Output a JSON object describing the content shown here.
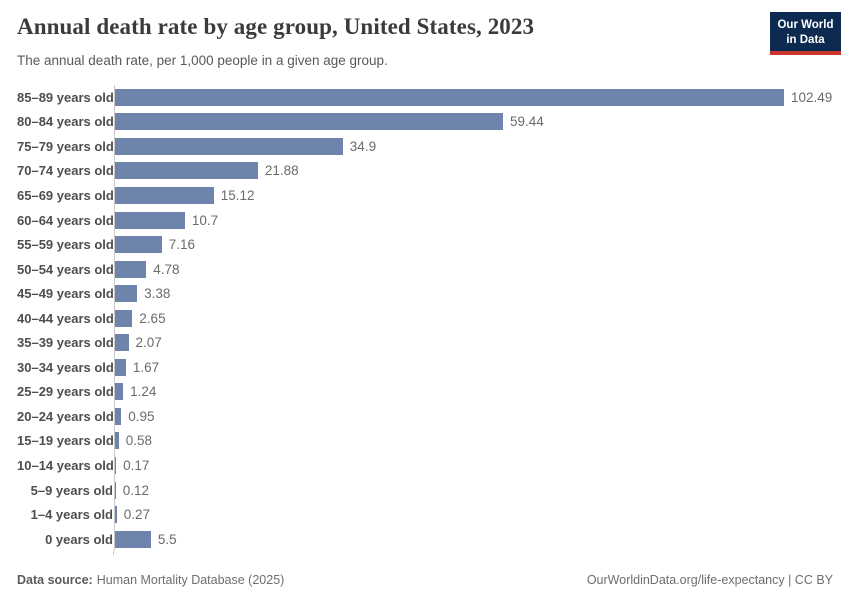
{
  "header": {
    "title": "Annual death rate by age group, United States, 2023",
    "subtitle": "The annual death rate, per 1,000 people in a given age group.",
    "logo": {
      "line1": "Our World",
      "line2": "in Data"
    }
  },
  "chart_data": {
    "type": "bar",
    "orientation": "horizontal",
    "title": "Annual death rate by age group, United States, 2023",
    "xlabel": "",
    "ylabel": "",
    "grid": false,
    "xlim": [
      0,
      111
    ],
    "bar_color": "#6e84ac",
    "categories": [
      "85–89 years old",
      "80–84 years old",
      "75–79 years old",
      "70–74 years old",
      "65–69 years old",
      "60–64 years old",
      "55–59 years old",
      "50–54 years old",
      "45–49 years old",
      "40–44 years old",
      "35–39 years old",
      "30–34 years old",
      "25–29 years old",
      "20–24 years old",
      "15–19 years old",
      "10–14 years old",
      "5–9 years old",
      "1–4 years old",
      "0 years old"
    ],
    "values": [
      102.49,
      59.44,
      34.9,
      21.88,
      15.12,
      10.7,
      7.16,
      4.78,
      3.38,
      2.65,
      2.07,
      1.67,
      1.24,
      0.95,
      0.58,
      0.17,
      0.12,
      0.27,
      5.5
    ],
    "value_labels": [
      "102.49",
      "59.44",
      "34.9",
      "21.88",
      "15.12",
      "10.7",
      "7.16",
      "4.78",
      "3.38",
      "2.65",
      "2.07",
      "1.67",
      "1.24",
      "0.95",
      "0.58",
      "0.17",
      "0.12",
      "0.27",
      "5.5"
    ]
  },
  "footer": {
    "datasource_label": "Data source:",
    "datasource_value": "Human Mortality Database (2025)",
    "link": "OurWorldinData.org/life-expectancy | CC BY"
  },
  "colors": {
    "bar": "#6e84ac",
    "logo_background": "#0d2a50",
    "logo_stripe": "#c9352b",
    "axis_line": "#c9c9c9"
  }
}
